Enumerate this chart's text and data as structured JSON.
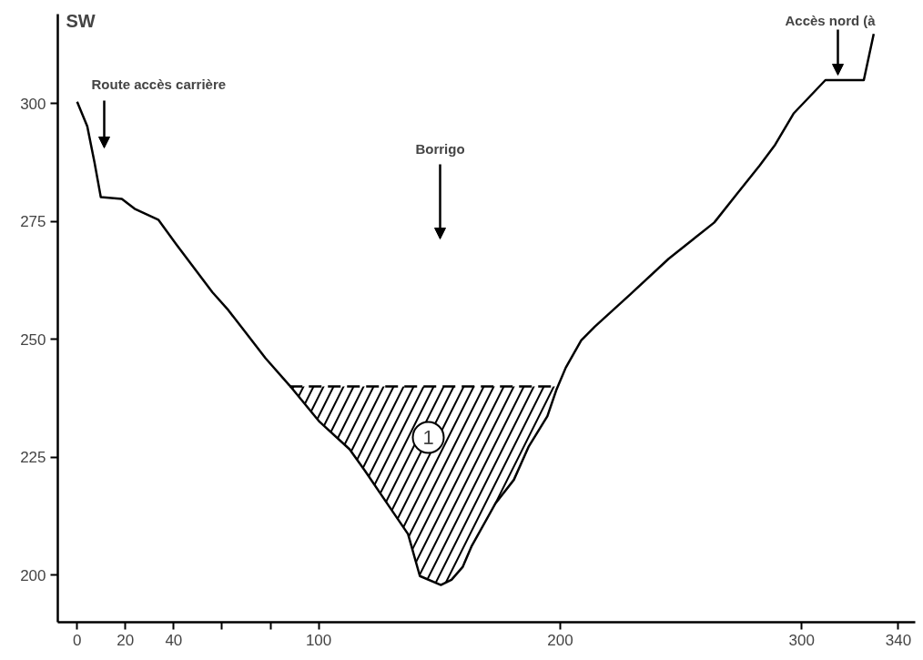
{
  "chart_data": {
    "type": "line",
    "title": "SW",
    "xlim": [
      -8,
      347
    ],
    "ylim": [
      190,
      319
    ],
    "xticks": [
      0,
      20,
      40,
      {
        "value": 60,
        "label": null
      },
      {
        "value": 80,
        "label": null
      },
      100,
      200,
      300,
      340
    ],
    "yticks": [
      200,
      225,
      250,
      275,
      300
    ],
    "grid": false,
    "series": [
      {
        "color": "#000000",
        "x": [
          0,
          4.2,
          7.2,
          9.8,
          18.5,
          23.8,
          33.6,
          41,
          56,
          62.6,
          70,
          78,
          88,
          100.4,
          112.8,
          119.2,
          129.4,
          137,
          141.9,
          150.6,
          155,
          159.6,
          163.4,
          173.2,
          180.8,
          187,
          194.7,
          198.5,
          202.3,
          208.7,
          214.3,
          228.7,
          244.9,
          263.8,
          272.8,
          282.6,
          289,
          296.6,
          309.8,
          325.7,
          329.8
        ],
        "values": [
          300.4,
          295.2,
          287.5,
          280.2,
          279.8,
          277.7,
          275.4,
          270.2,
          260,
          256.2,
          251.3,
          246,
          240.2,
          232.5,
          226.7,
          222.1,
          214.4,
          208.7,
          199.8,
          197.9,
          199,
          201.7,
          206.2,
          215.2,
          220.2,
          227.3,
          233.7,
          239.4,
          244,
          249.8,
          252.7,
          259.4,
          267.1,
          274.8,
          280.6,
          286.9,
          291.3,
          297.9,
          305,
          305,
          314.8
        ]
      },
      {
        "color": "#000000",
        "line_style": "dashed",
        "x": [
          88,
          100.4,
          112.8,
          119.2,
          129.4,
          137,
          141.9,
          150.6,
          155,
          159.6,
          163.4,
          173.2,
          180.8,
          187,
          194.7,
          198.5
        ],
        "values": [
          240,
          240,
          240,
          240,
          240,
          240,
          240,
          240,
          240,
          240,
          240,
          240,
          240,
          240,
          240,
          240
        ],
        "lower": [
          240,
          232.5,
          226.7,
          222.1,
          214.4,
          208.7,
          199.8,
          197.9,
          199,
          201.7,
          206.2,
          215.2,
          220.2,
          227.3,
          233.7,
          239.4
        ],
        "upper": [
          240,
          240,
          240,
          240,
          240,
          240,
          240,
          240,
          240,
          240,
          240,
          240,
          240,
          240,
          240,
          240
        ]
      }
    ],
    "annotations": [
      "Route accès carrière",
      "Borrigo",
      "Accès nord  (à",
      "1"
    ]
  }
}
